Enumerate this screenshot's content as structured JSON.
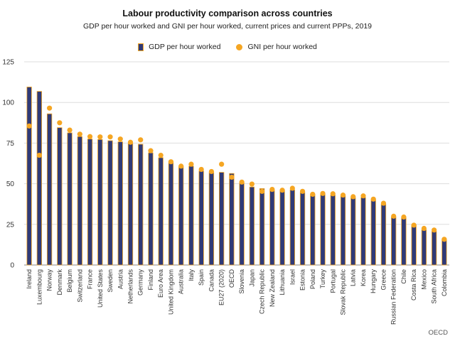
{
  "chart_data": {
    "type": "bar",
    "title": "Labour productivity comparison across countries",
    "subtitle": "GDP per hour worked and GNI per hour worked, current prices and current PPPs, 2019",
    "source": "OECD",
    "ylim": [
      0,
      125
    ],
    "yticks": [
      0,
      25,
      50,
      75,
      100,
      125
    ],
    "grid": true,
    "legend_position": "top-center",
    "colors": {
      "bar_fill": "#2f3a78",
      "bar_edge": "#f5a623",
      "dot": "#f5a623",
      "grid": "#dddddd"
    },
    "categories": [
      "Ireland",
      "Luxembourg",
      "Norway",
      "Denmark",
      "Belgium",
      "Switzerland",
      "France",
      "United States",
      "Sweden",
      "Austria",
      "Netherlands",
      "Germany",
      "Finland",
      "Euro Area",
      "United Kingdom",
      "Australia",
      "Italy",
      "Spain",
      "Canada",
      "EU27 (2020)",
      "OECD",
      "Slovenia",
      "Japan",
      "Czech Republic",
      "New Zealand",
      "Lithuania",
      "Israel",
      "Estonia",
      "Poland",
      "Turkey",
      "Portugal",
      "Slovak Republic",
      "Latvia",
      "Korea",
      "Hungary",
      "Greece",
      "Russian Federation",
      "Chile",
      "Costa Rica",
      "Mexico",
      "South Africa",
      "Colombia"
    ],
    "series": [
      {
        "name": "GDP per hour worked",
        "kind": "bar",
        "values": [
          109.5,
          106.8,
          93,
          84.5,
          81.3,
          79,
          77.5,
          77.2,
          76.5,
          75.8,
          74.7,
          74.3,
          69,
          66,
          63.3,
          60.8,
          60.8,
          57.8,
          57,
          57,
          56.3,
          50.5,
          48,
          47,
          46,
          45.8,
          46.2,
          44.7,
          43.5,
          43.5,
          43,
          42.5,
          41.5,
          41.5,
          40.2,
          37.5,
          29.5,
          29,
          24.7,
          21.7,
          20.7,
          15.7
        ]
      },
      {
        "name": "GNI per hour worked",
        "kind": "dot",
        "values": [
          85.5,
          67.5,
          96.5,
          87.5,
          83,
          80.5,
          79,
          78.8,
          78.8,
          77.5,
          75.5,
          77,
          70.3,
          67.5,
          63.5,
          60.8,
          62,
          58.8,
          57.5,
          62,
          54,
          51,
          49.8,
          45.3,
          46.5,
          46,
          47.2,
          45.3,
          43.5,
          44,
          43.8,
          43,
          42,
          42.5,
          40.5,
          38,
          30,
          29.5,
          24.5,
          22.5,
          21.5,
          15.8
        ]
      }
    ]
  }
}
